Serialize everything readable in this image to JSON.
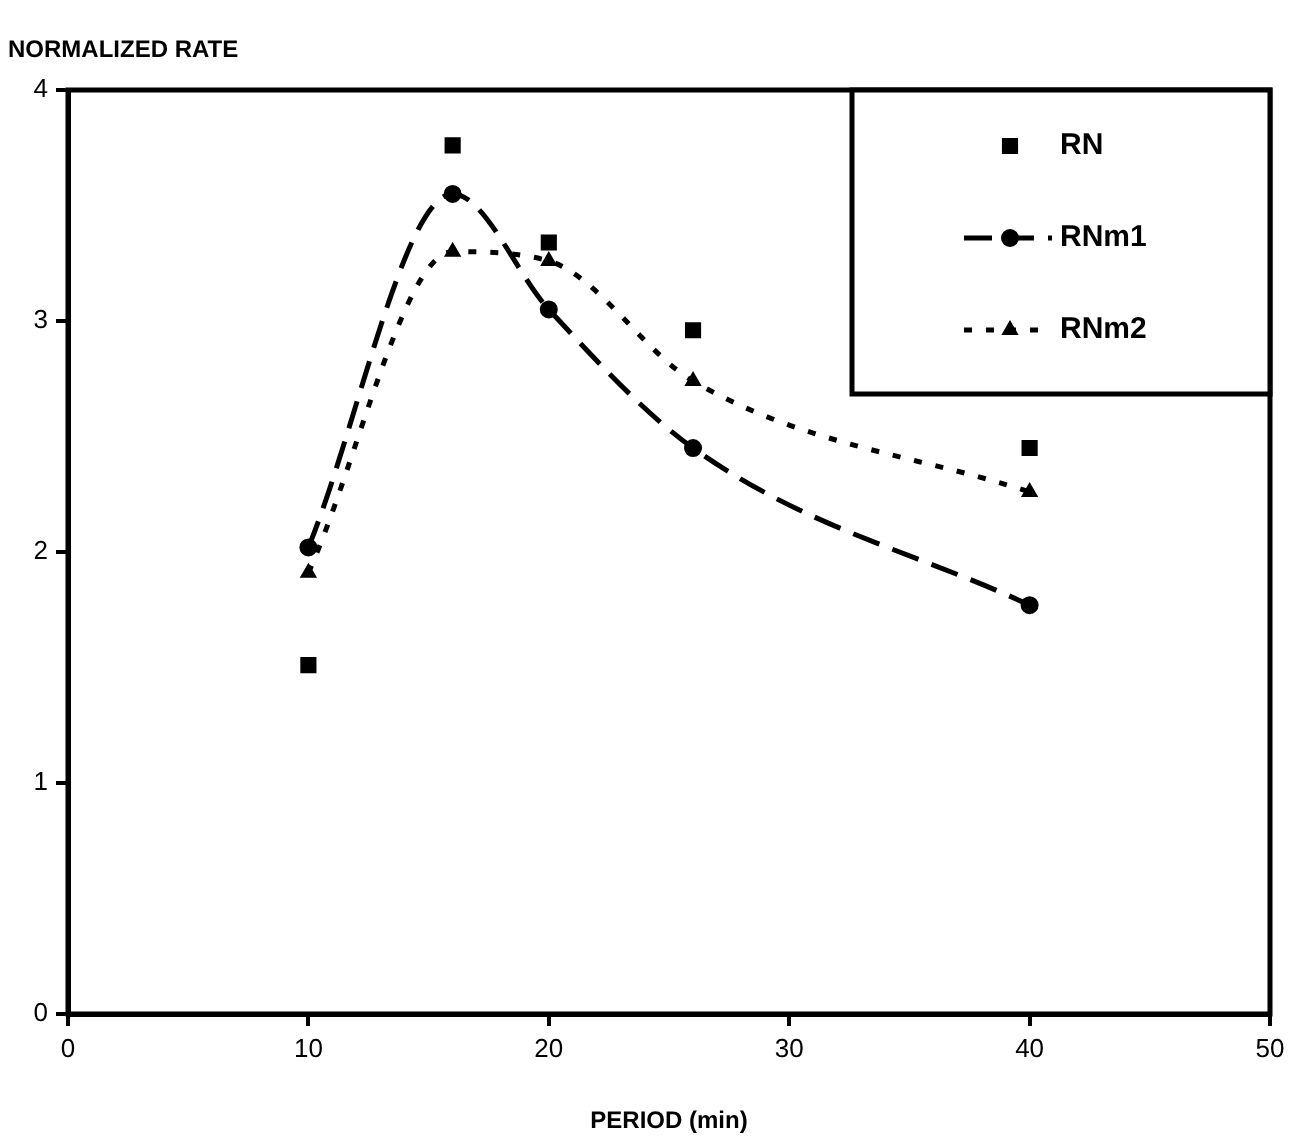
{
  "chart_data": {
    "type": "line",
    "xlabel": "PERIOD (min)",
    "ylabel": "NORMALIZED RATE",
    "x": [
      10,
      16,
      20,
      26,
      40
    ],
    "series": [
      {
        "name": "RN",
        "type": "scatter",
        "color": "#000000",
        "marker": "square",
        "values": [
          1.51,
          3.76,
          3.34,
          2.96,
          2.45
        ]
      },
      {
        "name": "RNm1",
        "type": "line",
        "color": "#000000",
        "marker": "circle",
        "line_style": "dashed",
        "values": [
          2.02,
          3.55,
          3.05,
          2.45,
          1.77
        ]
      },
      {
        "name": "RNm2",
        "type": "line",
        "color": "#000000",
        "marker": "triangle",
        "line_style": "dotted",
        "values": [
          1.91,
          3.3,
          3.26,
          2.74,
          2.26
        ]
      }
    ],
    "xlim": [
      0,
      50
    ],
    "xticks": [
      0,
      10,
      20,
      30,
      40,
      50
    ],
    "ylim": [
      0,
      4
    ],
    "yticks": [
      0,
      1,
      2,
      3,
      4
    ],
    "grid": false,
    "legend": "top right"
  }
}
